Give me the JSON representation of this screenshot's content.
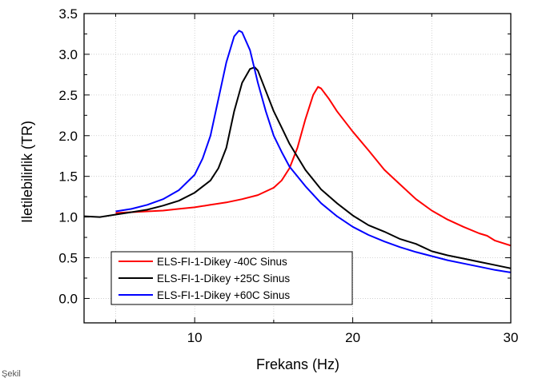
{
  "chart_data": {
    "type": "line",
    "xlabel": "Frekans (Hz)",
    "ylabel": "Iletilebilirlik (TR)",
    "xlim": [
      3,
      30
    ],
    "ylim": [
      -0.3,
      3.5
    ],
    "xticks": [
      10,
      20,
      30
    ],
    "yticks": [
      0.0,
      0.5,
      1.0,
      1.5,
      2.0,
      2.5,
      3.0,
      3.5
    ],
    "grid": true,
    "legend_position": "lower-left",
    "series": [
      {
        "name": "ELS-FI-1-Dikey -40C Sinus",
        "color": "#ff0000",
        "x": [
          5,
          6,
          7,
          8,
          9,
          10,
          11,
          12,
          13,
          14,
          15,
          15.5,
          16,
          16.5,
          17,
          17.5,
          17.8,
          18,
          18.5,
          19,
          20,
          21,
          22,
          23,
          24,
          25,
          26,
          27,
          28,
          28.5,
          29,
          30
        ],
        "y": [
          1.05,
          1.06,
          1.07,
          1.08,
          1.1,
          1.12,
          1.15,
          1.18,
          1.22,
          1.27,
          1.36,
          1.45,
          1.6,
          1.85,
          2.2,
          2.5,
          2.6,
          2.58,
          2.45,
          2.3,
          2.05,
          1.82,
          1.58,
          1.4,
          1.22,
          1.08,
          0.97,
          0.88,
          0.8,
          0.77,
          0.71,
          0.65
        ]
      },
      {
        "name": "ELS-FI-1-Dikey +25C Sinus",
        "color": "#000000",
        "x": [
          3,
          4,
          5,
          6,
          7,
          8,
          9,
          10,
          11,
          11.5,
          12,
          12.5,
          13,
          13.5,
          13.8,
          14,
          14.5,
          15,
          15.5,
          16,
          17,
          18,
          19,
          20,
          21,
          22,
          23,
          24,
          25,
          26,
          27,
          28,
          29,
          30
        ],
        "y": [
          1.01,
          1.0,
          1.03,
          1.06,
          1.09,
          1.14,
          1.2,
          1.3,
          1.45,
          1.6,
          1.85,
          2.3,
          2.65,
          2.82,
          2.84,
          2.8,
          2.55,
          2.3,
          2.1,
          1.9,
          1.58,
          1.34,
          1.17,
          1.02,
          0.9,
          0.82,
          0.73,
          0.67,
          0.58,
          0.53,
          0.49,
          0.45,
          0.41,
          0.37
        ]
      },
      {
        "name": "ELS-FI-1-Dikey +60C Sinus",
        "color": "#0000ff",
        "x": [
          5,
          6,
          7,
          8,
          9,
          10,
          10.5,
          11,
          11.5,
          12,
          12.5,
          12.8,
          13,
          13.5,
          14,
          14.5,
          15,
          15.5,
          16,
          17,
          18,
          19,
          20,
          21,
          22,
          23,
          24,
          25,
          26,
          27,
          28,
          29,
          30
        ],
        "y": [
          1.07,
          1.1,
          1.15,
          1.22,
          1.33,
          1.52,
          1.72,
          2.0,
          2.45,
          2.9,
          3.22,
          3.29,
          3.27,
          3.05,
          2.65,
          2.3,
          2.0,
          1.8,
          1.62,
          1.38,
          1.17,
          1.01,
          0.88,
          0.78,
          0.7,
          0.63,
          0.57,
          0.52,
          0.47,
          0.43,
          0.39,
          0.35,
          0.32
        ]
      }
    ]
  },
  "page": {
    "corner_fragment": "Şekil"
  }
}
